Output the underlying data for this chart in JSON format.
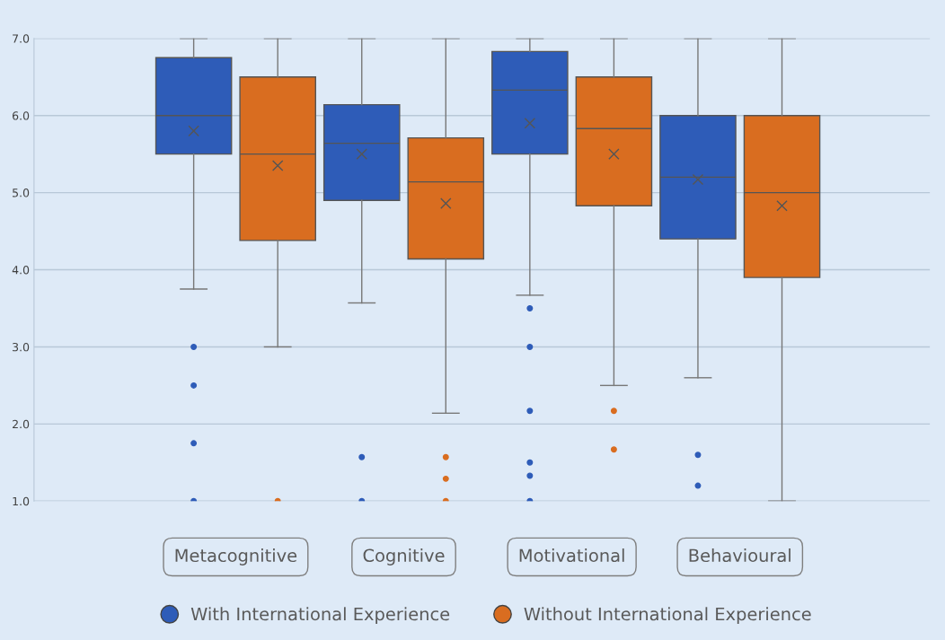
{
  "chart_data": {
    "type": "box",
    "categories": [
      "Metacognitive",
      "Cognitive",
      "Motivational",
      "Behavioural"
    ],
    "series": [
      {
        "name": "With International Experience",
        "color": "#2e5cb8",
        "boxes": [
          {
            "low": 3.75,
            "q1": 5.5,
            "median": 6.0,
            "q3": 6.75,
            "high": 7.0,
            "mean": 5.8,
            "outliers": [
              3.0,
              2.5,
              1.75,
              1.0
            ]
          },
          {
            "low": 3.57,
            "q1": 4.9,
            "median": 5.64,
            "q3": 6.14,
            "high": 7.0,
            "mean": 5.5,
            "outliers": [
              1.57,
              1.0
            ]
          },
          {
            "low": 3.67,
            "q1": 5.5,
            "median": 6.33,
            "q3": 6.83,
            "high": 7.0,
            "mean": 5.9,
            "outliers": [
              3.5,
              3.0,
              2.17,
              1.5,
              1.33,
              1.0
            ]
          },
          {
            "low": 2.6,
            "q1": 4.4,
            "median": 5.2,
            "q3": 6.0,
            "high": 7.0,
            "mean": 5.17,
            "outliers": [
              1.6,
              1.2
            ]
          }
        ]
      },
      {
        "name": "Without International Experience",
        "color": "#d96d20",
        "boxes": [
          {
            "low": 3.0,
            "q1": 4.38,
            "median": 5.5,
            "q3": 6.5,
            "high": 7.0,
            "mean": 5.35,
            "outliers": [
              1.0
            ]
          },
          {
            "low": 2.14,
            "q1": 4.14,
            "median": 5.14,
            "q3": 5.71,
            "high": 7.0,
            "mean": 4.86,
            "outliers": [
              1.57,
              1.29,
              1.0
            ]
          },
          {
            "low": 2.5,
            "q1": 4.83,
            "median": 5.83,
            "q3": 6.5,
            "high": 7.0,
            "mean": 5.5,
            "outliers": [
              2.17,
              1.67
            ]
          },
          {
            "low": 1.0,
            "q1": 3.9,
            "median": 5.0,
            "q3": 6.0,
            "high": 7.0,
            "mean": 4.83
          }
        ]
      }
    ],
    "ylim": [
      1.0,
      7.0
    ],
    "yticks": [
      {
        "value": 1,
        "label": "1.0"
      },
      {
        "value": 2,
        "label": "2.0"
      },
      {
        "value": 3,
        "label": "3.0"
      },
      {
        "value": 4,
        "label": "4.0"
      },
      {
        "value": 5,
        "label": "5.0"
      },
      {
        "value": 6,
        "label": "6.0"
      },
      {
        "value": 7,
        "label": "7.0"
      }
    ],
    "grid": "y",
    "legend": "bottom"
  }
}
